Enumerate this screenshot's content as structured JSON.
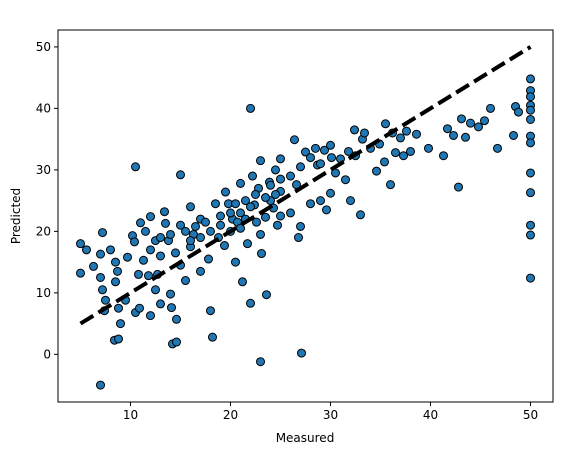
{
  "chart_data": {
    "type": "scatter",
    "x_label": "Measured",
    "y_label": "Predicted",
    "x": [
      5,
      5,
      5.6,
      6.3,
      7,
      7.2,
      7,
      7,
      7.2,
      7.5,
      7.4,
      8,
      8.4,
      8.8,
      8.5,
      8.7,
      8.8,
      9,
      8.5,
      9.5,
      9.7,
      10.2,
      10.4,
      10.5,
      10.5,
      10.9,
      10.8,
      11,
      11.3,
      11.8,
      12,
      12,
      12.5,
      12.5,
      12.7,
      13,
      13,
      13.4,
      13.5,
      13.8,
      14,
      14.1,
      14,
      14.2,
      14.6,
      14.6,
      15,
      15,
      15,
      15.5,
      16,
      16,
      16.3,
      16.5,
      17,
      17,
      17.5,
      17.8,
      18,
      18.2,
      18.5,
      18.8,
      19,
      19.4,
      19.5,
      19.8,
      20,
      20.2,
      20.5,
      20.7,
      21,
      21,
      21,
      21.2,
      21.5,
      21.7,
      22,
      22,
      22.2,
      22.4,
      22.6,
      22.8,
      23,
      23,
      23,
      23.1,
      23.5,
      23.6,
      23.9,
      24,
      24.3,
      24.5,
      24.7,
      25,
      25,
      25,
      26,
      26,
      26.4,
      26.6,
      26.8,
      27,
      27.1,
      27.5,
      28,
      28.5,
      28.7,
      29,
      29.4,
      29.6,
      30,
      30.1,
      30.5,
      31,
      31.5,
      31.8,
      32,
      32.5,
      32.4,
      33,
      33.2,
      33.4,
      34,
      34.6,
      34.9,
      35.4,
      35.5,
      36,
      36.2,
      36.5,
      37,
      37.3,
      37.6,
      38,
      38.6,
      39.8,
      41.3,
      41.7,
      42.3,
      42.8,
      43.1,
      43.5,
      44,
      44.8,
      45.4,
      46,
      46.7,
      48.3,
      48.5,
      48.8,
      50,
      50,
      50,
      50,
      50,
      50,
      50,
      50,
      50,
      50,
      50,
      50,
      50,
      20,
      20.5,
      21.5,
      22,
      22.5,
      23.5,
      24,
      19,
      18,
      17,
      16,
      15.5,
      14.5,
      13,
      12,
      11.5,
      24.5,
      25,
      27,
      28,
      29,
      30
    ],
    "values": [
      18,
      13.2,
      17,
      14.3,
      -5,
      19.8,
      16.3,
      12.5,
      10.5,
      8.8,
      7.1,
      17,
      2.3,
      2.5,
      11.8,
      13.5,
      7.5,
      5,
      15,
      8.8,
      15.8,
      19.3,
      18.3,
      30.5,
      6.8,
      7.5,
      13,
      21.4,
      15.3,
      12.8,
      22.4,
      6.3,
      18.5,
      10.5,
      13,
      16,
      8.2,
      23.2,
      21.3,
      18.5,
      19.5,
      7.6,
      9.8,
      1.7,
      2,
      5.7,
      29.2,
      21,
      14.5,
      12,
      24,
      17.5,
      19.5,
      20.8,
      22,
      13.5,
      21.5,
      15.5,
      7.1,
      2.8,
      24.5,
      19,
      22.5,
      17.7,
      26.4,
      24.5,
      20,
      22,
      15,
      21.5,
      27.8,
      23,
      20.5,
      11.8,
      25,
      18,
      40,
      8.3,
      29,
      24.3,
      21.5,
      27,
      31.5,
      19.5,
      -1.2,
      16.4,
      22.3,
      9.7,
      28,
      25,
      23.8,
      30,
      21,
      31.8,
      26.5,
      22.5,
      29,
      23,
      34.9,
      27.6,
      19,
      20.8,
      0.2,
      32.9,
      24.5,
      33.5,
      30.8,
      25,
      33.2,
      23.5,
      26.2,
      32,
      29.5,
      31.8,
      28.4,
      33,
      25,
      32.3,
      36.5,
      22.7,
      35,
      36,
      33.5,
      29.8,
      34.2,
      31.3,
      37.5,
      27.6,
      36,
      32.8,
      35.2,
      32.3,
      36.3,
      33,
      35.8,
      33.5,
      32.3,
      36.7,
      35.6,
      27.2,
      38.3,
      35.3,
      37.6,
      37,
      38,
      40,
      33.5,
      35.6,
      40.3,
      39.4,
      44.8,
      42.9,
      41.9,
      40.5,
      39.7,
      38.2,
      35.5,
      34.4,
      29.5,
      26.3,
      21,
      19.4,
      12.4,
      23,
      24.5,
      22,
      24,
      26,
      25.5,
      27.5,
      21,
      20,
      19,
      18.5,
      20,
      16.5,
      19,
      17,
      20,
      26,
      28.5,
      30.5,
      32,
      31,
      34
    ],
    "color": "#1f77b4",
    "reference_line": {
      "x": [
        5,
        50
      ],
      "y": [
        5,
        50
      ],
      "color": "#000000"
    },
    "xlim": [
      2.75,
      52.25
    ],
    "ylim": [
      -7.75,
      52.75
    ],
    "xticks": [
      10,
      20,
      30,
      40,
      50
    ],
    "yticks": [
      0,
      10,
      20,
      30,
      40,
      50
    ]
  }
}
